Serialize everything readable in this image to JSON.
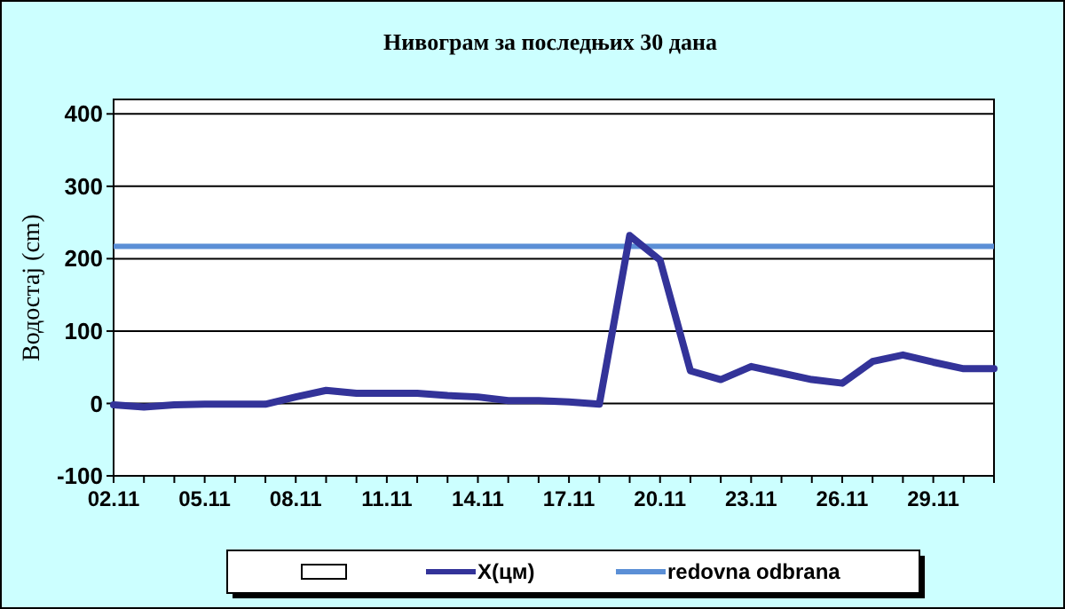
{
  "chart_data": {
    "type": "line",
    "title": "Нивограм за последњих 30 дана",
    "ylabel": "Водостај (cm)",
    "categories": [
      "02.11",
      null,
      null,
      "05.11",
      null,
      null,
      "08.11",
      null,
      null,
      "11.11",
      null,
      null,
      "14.11",
      null,
      null,
      "17.11",
      null,
      null,
      "20.11",
      null,
      null,
      "23.11",
      null,
      null,
      "26.11",
      null,
      null,
      "29.11",
      null,
      null
    ],
    "series": [
      {
        "name": "X(цм)",
        "color": "#333399",
        "values": [
          -2,
          -5,
          -2,
          -1,
          -1,
          -1,
          9,
          18,
          14,
          14,
          14,
          11,
          9,
          4,
          4,
          2,
          -1,
          232,
          198,
          45,
          33,
          51,
          42,
          33,
          28,
          58,
          67,
          57,
          48,
          48
        ]
      }
    ],
    "ref_lines": [
      {
        "axis": "y",
        "value": 217,
        "label": "redovna odbrana",
        "color": "#5b8fd6"
      }
    ],
    "ylim": [
      -100,
      420
    ],
    "yticks": [
      -100,
      0,
      100,
      200,
      300,
      400
    ],
    "grid": "y",
    "legend": "bottom"
  }
}
